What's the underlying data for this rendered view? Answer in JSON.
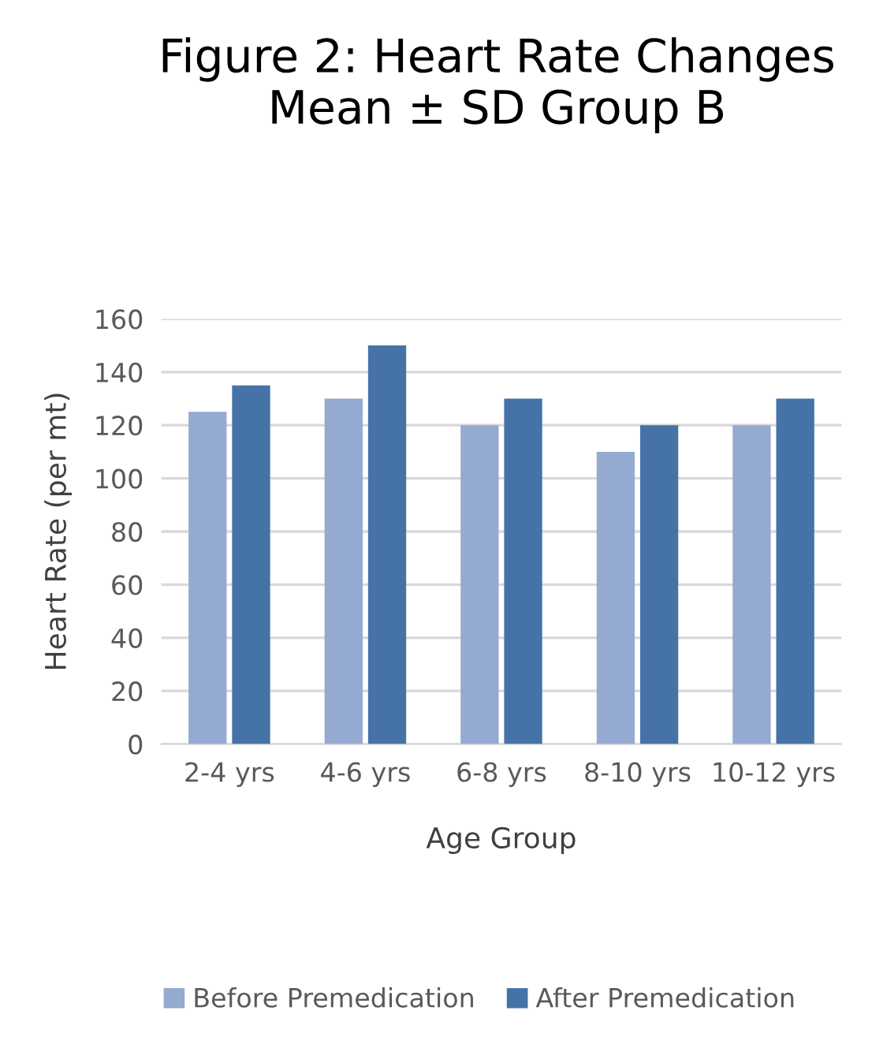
{
  "chart_data": {
    "type": "bar",
    "title": "Figure 2: Heart Rate Changes Mean ± SD Group B",
    "xlabel": "Age Group",
    "ylabel": "Heart Rate (per mt)",
    "categories": [
      "2-4 yrs",
      "4-6 yrs",
      "6-8 yrs",
      "8-10 yrs",
      "10-12 yrs"
    ],
    "series": [
      {
        "name": "Before Premedication",
        "color": "#95aad0",
        "values": [
          125,
          130,
          120,
          110,
          120
        ]
      },
      {
        "name": "After Premedication",
        "color": "#4673a7",
        "values": [
          135,
          150,
          130,
          120,
          130
        ]
      }
    ],
    "ylim": [
      0,
      160
    ],
    "yticks": [
      0,
      20,
      40,
      60,
      80,
      100,
      120,
      140,
      160
    ],
    "grid": "y",
    "legend": "bottom"
  }
}
